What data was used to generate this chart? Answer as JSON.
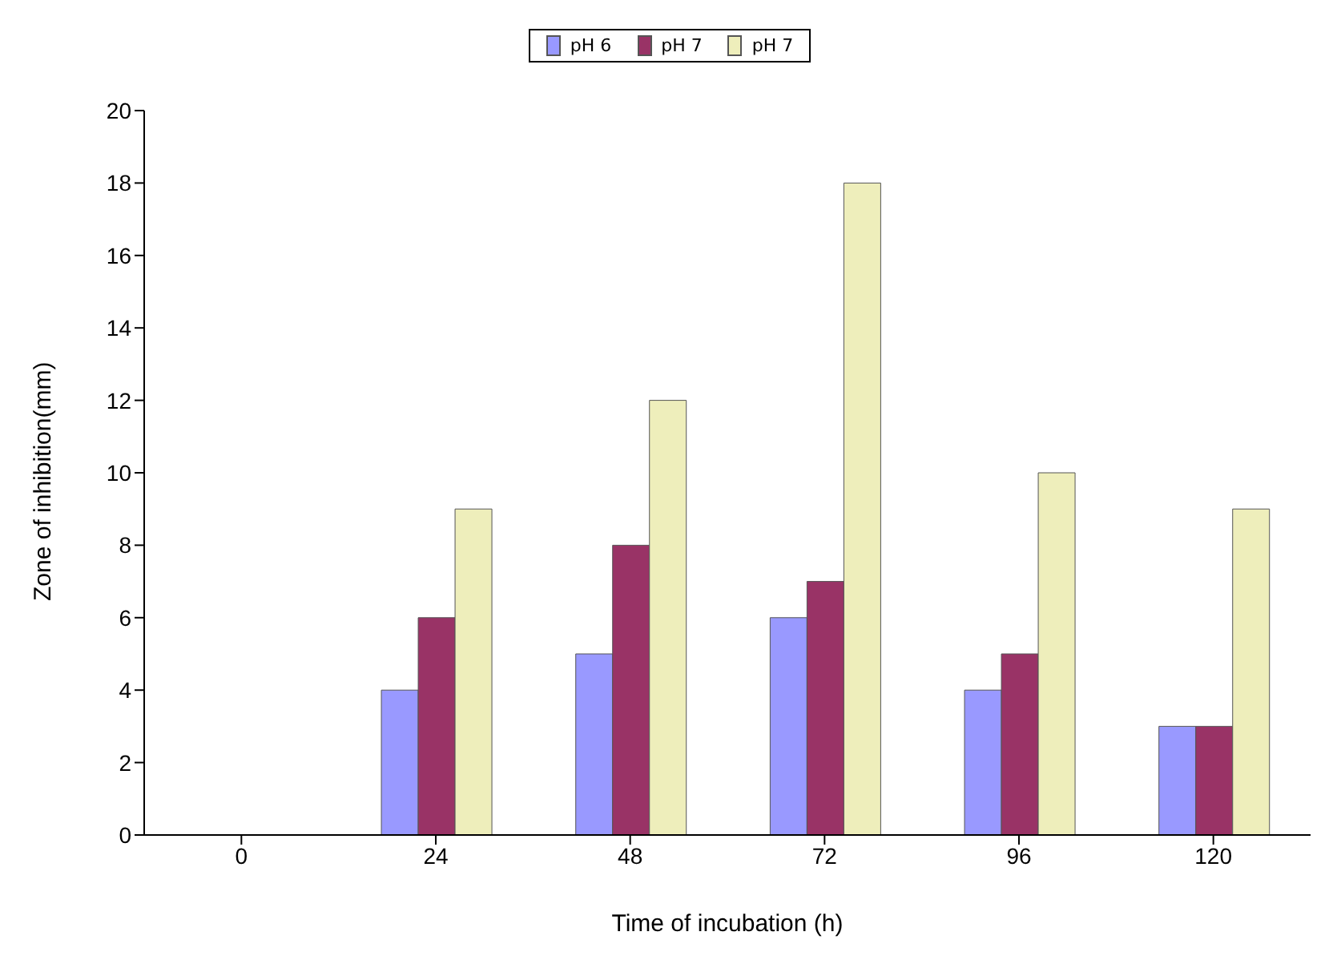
{
  "chart_data": {
    "type": "bar",
    "xlabel": "Time of incubation (h)",
    "ylabel": "Zone of inhibition(mm)",
    "categories": [
      "0",
      "24",
      "48",
      "72",
      "96",
      "120"
    ],
    "series": [
      {
        "name": "pH 6",
        "color": "#9999ff",
        "values": [
          0,
          4,
          5,
          6,
          4,
          3
        ]
      },
      {
        "name": "pH 7",
        "color": "#993366",
        "values": [
          0,
          6,
          8,
          7,
          5,
          3
        ]
      },
      {
        "name": "pH 7",
        "color": "#eeeebb",
        "values": [
          0,
          9,
          12,
          18,
          10,
          9
        ]
      }
    ],
    "ylim": [
      0,
      20
    ],
    "yticks": [
      0,
      2,
      4,
      6,
      8,
      10,
      12,
      14,
      16,
      18,
      20
    ],
    "grid": false,
    "legend": "top"
  }
}
